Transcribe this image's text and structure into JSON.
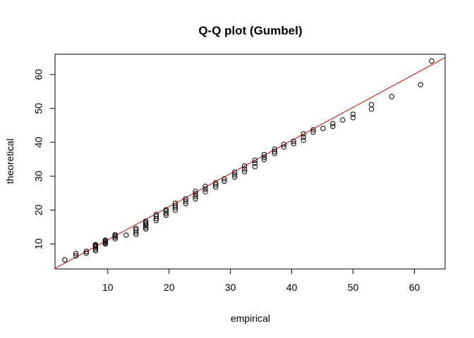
{
  "chart_data": {
    "type": "scatter",
    "title": "Q-Q plot (Gumbel)",
    "xlabel": "empirical",
    "ylabel": "theoretical",
    "xlim": [
      1.4,
      65
    ],
    "ylim": [
      2.6,
      66
    ],
    "x_ticks": [
      10,
      20,
      30,
      40,
      50,
      60
    ],
    "y_ticks": [
      10,
      20,
      30,
      40,
      50,
      60
    ],
    "grid": false,
    "legend": "none",
    "point_color": "#000000",
    "line_color": "#e00000",
    "reference_line": {
      "x": [
        1.4,
        65
      ],
      "y": [
        2.8,
        65
      ]
    },
    "series": [
      {
        "x": [
          3,
          4.8,
          4.8,
          6.5,
          6.5,
          8,
          8,
          8,
          8,
          8,
          8,
          9.6,
          9.6,
          9.6,
          9.6,
          9.6,
          11.2,
          11.2,
          11.2,
          11.2,
          13,
          14.6,
          14.6,
          14.6,
          14.6,
          16.2,
          16.2,
          16.2,
          16.2,
          16.2,
          16.2,
          17.9,
          17.9,
          17.9,
          17.9,
          19.5,
          19.5,
          19.5,
          19.5,
          21,
          21,
          21,
          21,
          22.7,
          22.7,
          22.7,
          24.3,
          24.3,
          24.3,
          24.3,
          25.9,
          25.9,
          25.9,
          27.6,
          27.6,
          27.6,
          29,
          29,
          30.7,
          30.7,
          30.7,
          32.3,
          32.3,
          32.3,
          34,
          34,
          34,
          35.5,
          35.5,
          35.5,
          37.2,
          37.2,
          37.2,
          38.7,
          38.7,
          40.3,
          40.3,
          41.9,
          41.9,
          41.9,
          43.5,
          43.5,
          45.1,
          46.7,
          46.7,
          48.3,
          50,
          50,
          53,
          53,
          56.3,
          61,
          62.8
        ],
        "y": [
          5.3,
          6.5,
          7.2,
          7.3,
          7.8,
          8,
          8.5,
          9,
          9.3,
          9.6,
          9.8,
          10,
          10.3,
          10.6,
          10.9,
          11.1,
          11.5,
          12,
          12.4,
          12.7,
          12.6,
          12.8,
          13.4,
          14.1,
          14.6,
          14.4,
          14.9,
          15.4,
          15.9,
          16.3,
          16.7,
          16.9,
          17.5,
          18.2,
          18.7,
          18.5,
          19.1,
          19.7,
          20.1,
          20,
          20.7,
          21.3,
          22,
          21.9,
          22.6,
          23.3,
          23.3,
          24,
          24.8,
          25.5,
          25.4,
          26.2,
          27,
          26.8,
          27.5,
          28.1,
          28.5,
          29.2,
          29.7,
          30.4,
          31.2,
          31.3,
          32.1,
          33,
          32.8,
          33.8,
          34.7,
          34.9,
          35.6,
          36.4,
          36.7,
          37.3,
          38,
          38.6,
          39.4,
          39.6,
          40.3,
          40.6,
          41.5,
          42.5,
          43,
          43.7,
          44.1,
          44.7,
          45.5,
          46.6,
          47.3,
          48.3,
          49.8,
          51.1,
          53.5,
          57,
          64
        ]
      }
    ]
  }
}
